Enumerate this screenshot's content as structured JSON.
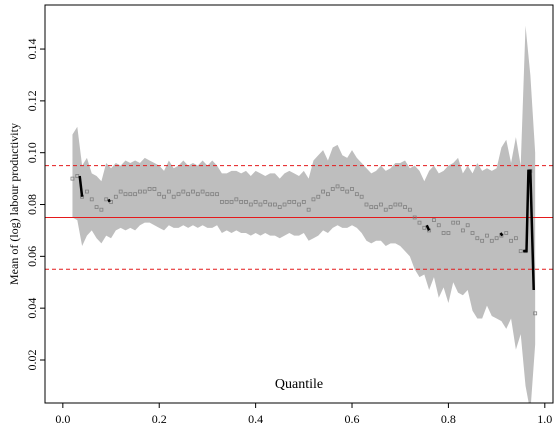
{
  "chart_data": {
    "type": "quantile-band",
    "x_label": "Quantile",
    "y_label": "Mean of (log) labour productivity",
    "x": [
      0.02,
      0.03,
      0.04,
      0.05,
      0.06,
      0.07,
      0.08,
      0.09,
      0.1,
      0.11,
      0.12,
      0.13,
      0.14,
      0.15,
      0.16,
      0.17,
      0.18,
      0.19,
      0.2,
      0.21,
      0.22,
      0.23,
      0.24,
      0.25,
      0.26,
      0.27,
      0.28,
      0.29,
      0.3,
      0.31,
      0.32,
      0.33,
      0.34,
      0.35,
      0.36,
      0.37,
      0.38,
      0.39,
      0.4,
      0.41,
      0.42,
      0.43,
      0.44,
      0.45,
      0.46,
      0.47,
      0.48,
      0.49,
      0.5,
      0.51,
      0.52,
      0.53,
      0.54,
      0.55,
      0.56,
      0.57,
      0.58,
      0.59,
      0.6,
      0.61,
      0.62,
      0.63,
      0.64,
      0.65,
      0.66,
      0.67,
      0.68,
      0.69,
      0.7,
      0.71,
      0.72,
      0.73,
      0.74,
      0.75,
      0.76,
      0.77,
      0.78,
      0.79,
      0.8,
      0.81,
      0.82,
      0.83,
      0.84,
      0.85,
      0.86,
      0.87,
      0.88,
      0.89,
      0.9,
      0.91,
      0.92,
      0.93,
      0.94,
      0.95,
      0.96,
      0.97,
      0.98
    ],
    "values": [
      0.09,
      0.091,
      0.083,
      0.085,
      0.082,
      0.079,
      0.078,
      0.082,
      0.081,
      0.083,
      0.085,
      0.084,
      0.084,
      0.084,
      0.085,
      0.085,
      0.086,
      0.086,
      0.084,
      0.083,
      0.085,
      0.083,
      0.084,
      0.085,
      0.084,
      0.085,
      0.084,
      0.085,
      0.084,
      0.084,
      0.084,
      0.081,
      0.081,
      0.081,
      0.082,
      0.081,
      0.081,
      0.08,
      0.081,
      0.08,
      0.081,
      0.08,
      0.08,
      0.079,
      0.08,
      0.081,
      0.081,
      0.08,
      0.081,
      0.078,
      0.082,
      0.083,
      0.085,
      0.084,
      0.086,
      0.087,
      0.086,
      0.085,
      0.086,
      0.084,
      0.083,
      0.08,
      0.079,
      0.079,
      0.08,
      0.078,
      0.079,
      0.08,
      0.08,
      0.079,
      0.078,
      0.075,
      0.073,
      0.071,
      0.07,
      0.074,
      0.072,
      0.069,
      0.069,
      0.073,
      0.073,
      0.07,
      0.072,
      0.069,
      0.067,
      0.066,
      0.068,
      0.066,
      0.067,
      0.068,
      0.069,
      0.066,
      0.067,
      0.062,
      0.062,
      0.093,
      0.038
    ],
    "upper": [
      0.107,
      0.11,
      0.095,
      0.098,
      0.092,
      0.091,
      0.089,
      0.096,
      0.094,
      0.096,
      0.095,
      0.097,
      0.096,
      0.097,
      0.096,
      0.098,
      0.097,
      0.096,
      0.095,
      0.093,
      0.097,
      0.094,
      0.095,
      0.097,
      0.095,
      0.096,
      0.095,
      0.097,
      0.095,
      0.097,
      0.095,
      0.092,
      0.092,
      0.093,
      0.093,
      0.092,
      0.093,
      0.091,
      0.093,
      0.092,
      0.091,
      0.092,
      0.092,
      0.09,
      0.092,
      0.093,
      0.092,
      0.091,
      0.093,
      0.09,
      0.097,
      0.099,
      0.101,
      0.097,
      0.102,
      0.103,
      0.099,
      0.098,
      0.101,
      0.098,
      0.096,
      0.094,
      0.092,
      0.093,
      0.095,
      0.093,
      0.094,
      0.096,
      0.096,
      0.097,
      0.094,
      0.095,
      0.093,
      0.089,
      0.093,
      0.095,
      0.092,
      0.093,
      0.095,
      0.096,
      0.098,
      0.092,
      0.095,
      0.092,
      0.096,
      0.093,
      0.094,
      0.093,
      0.094,
      0.102,
      0.105,
      0.096,
      0.106,
      0.095,
      0.149,
      0.13,
      0.1
    ],
    "lower": [
      0.075,
      0.074,
      0.064,
      0.068,
      0.07,
      0.067,
      0.065,
      0.068,
      0.067,
      0.07,
      0.071,
      0.07,
      0.071,
      0.07,
      0.072,
      0.073,
      0.073,
      0.072,
      0.071,
      0.07,
      0.072,
      0.071,
      0.071,
      0.072,
      0.071,
      0.072,
      0.071,
      0.072,
      0.071,
      0.071,
      0.072,
      0.069,
      0.07,
      0.069,
      0.07,
      0.069,
      0.069,
      0.068,
      0.069,
      0.068,
      0.069,
      0.068,
      0.068,
      0.067,
      0.068,
      0.069,
      0.068,
      0.068,
      0.069,
      0.066,
      0.067,
      0.068,
      0.07,
      0.069,
      0.071,
      0.072,
      0.071,
      0.071,
      0.072,
      0.071,
      0.069,
      0.066,
      0.065,
      0.066,
      0.066,
      0.064,
      0.065,
      0.065,
      0.064,
      0.062,
      0.06,
      0.055,
      0.052,
      0.053,
      0.047,
      0.052,
      0.044,
      0.048,
      0.042,
      0.05,
      0.046,
      0.045,
      0.047,
      0.039,
      0.036,
      0.036,
      0.041,
      0.037,
      0.036,
      0.035,
      0.032,
      0.036,
      0.024,
      0.03,
      0.01,
      0.0,
      0.026
    ],
    "segments": [
      {
        "x": [
          0.035,
          0.04
        ],
        "values": [
          0.091,
          0.083
        ]
      },
      {
        "x": [
          0.095,
          0.097
        ],
        "values": [
          0.082,
          0.081
        ]
      },
      {
        "x": [
          0.755,
          0.76
        ],
        "values": [
          0.072,
          0.07
        ]
      },
      {
        "x": [
          0.908,
          0.912
        ],
        "values": [
          0.069,
          0.068
        ]
      },
      {
        "x": [
          0.955,
          0.962,
          0.966,
          0.97,
          0.977
        ],
        "values": [
          0.062,
          0.062,
          0.093,
          0.093,
          0.047
        ]
      }
    ],
    "band_color": "#bebebe",
    "point_color": "#808080",
    "segment_color": "#000000",
    "hlines": [
      {
        "value": 0.075,
        "color": "#e41a1c",
        "style": "solid"
      },
      {
        "value": 0.095,
        "color": "#e41a1c",
        "style": "dashed"
      },
      {
        "value": 0.055,
        "color": "#e41a1c",
        "style": "dashed"
      }
    ],
    "xlim": [
      -0.037,
      1.017
    ],
    "ylim": [
      0.0034,
      0.157
    ],
    "xticks": [
      {
        "value": 0,
        "label": "0.0"
      },
      0.2,
      0.4,
      0.6,
      0.8,
      {
        "value": 1,
        "label": "1.0"
      }
    ],
    "yticks": [
      0.02,
      0.04,
      0.06,
      0.08,
      {
        "value": 0.1,
        "label": "0.10"
      },
      0.12,
      0.14
    ]
  }
}
